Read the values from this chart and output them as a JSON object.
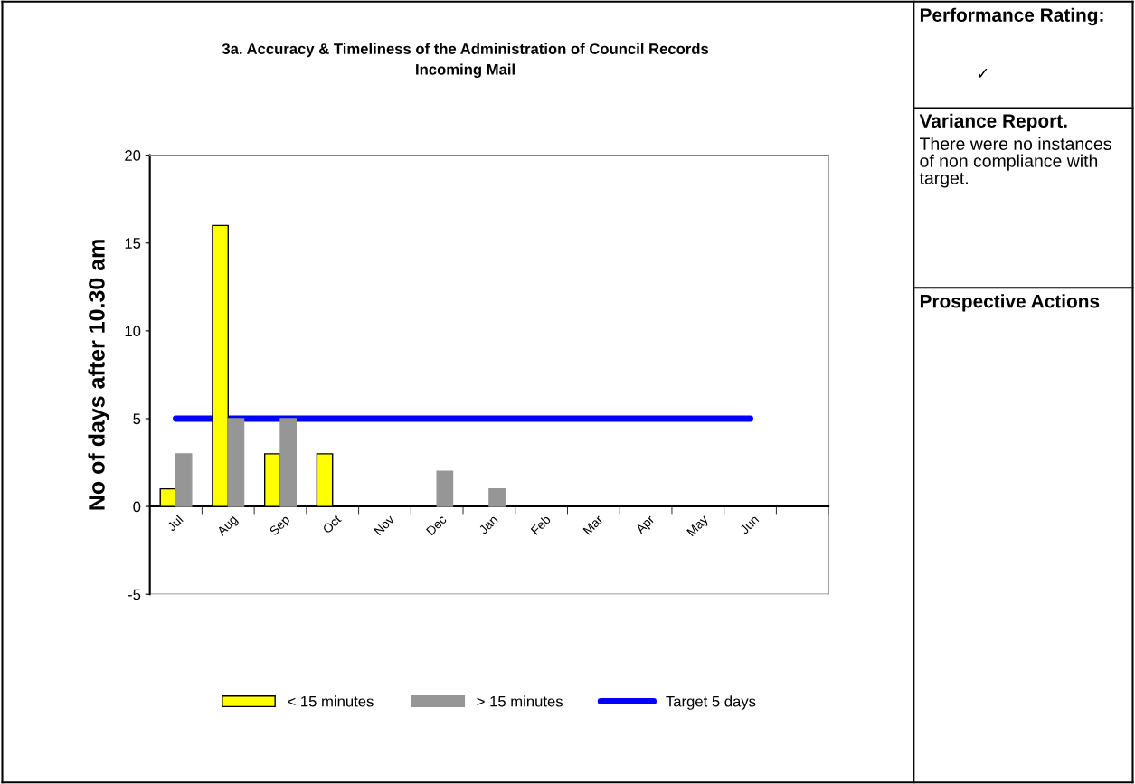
{
  "chart_data": [
    {
      "type": "bar",
      "title": "3a. Accuracy & Timeliness of the Administration of Council Records\nIncoming Mail",
      "ylabel": "No of days after 10.30 am",
      "categories": [
        "Jul",
        "Aug",
        "Sep",
        "Oct",
        "Nov",
        "Dec",
        "Jan",
        "Feb",
        "Mar",
        "Apr",
        "May",
        "Jun",
        null
      ],
      "series": [
        {
          "name": "< 15 minutes",
          "color": "#ffff00",
          "values": [
            1,
            16,
            3,
            3,
            0,
            0,
            0,
            0,
            0,
            0,
            0,
            0,
            null
          ]
        },
        {
          "name": "> 15 minutes",
          "color": "#969696",
          "values": [
            3,
            5,
            5,
            0,
            0,
            2,
            1,
            0,
            0,
            0,
            0,
            0,
            null
          ]
        },
        {
          "name": "Target 5 days",
          "type": "line",
          "color": "#0000ff",
          "values": [
            5,
            5,
            5,
            5,
            5,
            5,
            5,
            5,
            5,
            5,
            5,
            5,
            null
          ]
        }
      ],
      "ylim": [
        -5,
        20
      ],
      "yticks": [
        -5,
        0,
        5,
        10,
        15,
        20
      ],
      "grid": false,
      "legend": "bottom"
    },
    {
      "type": "other",
      "annotations": [
        "Performance Rating:",
        "✓",
        "Variance Report.",
        "There were no instances of non compliance with target.",
        "Prospective Actions"
      ]
    }
  ]
}
